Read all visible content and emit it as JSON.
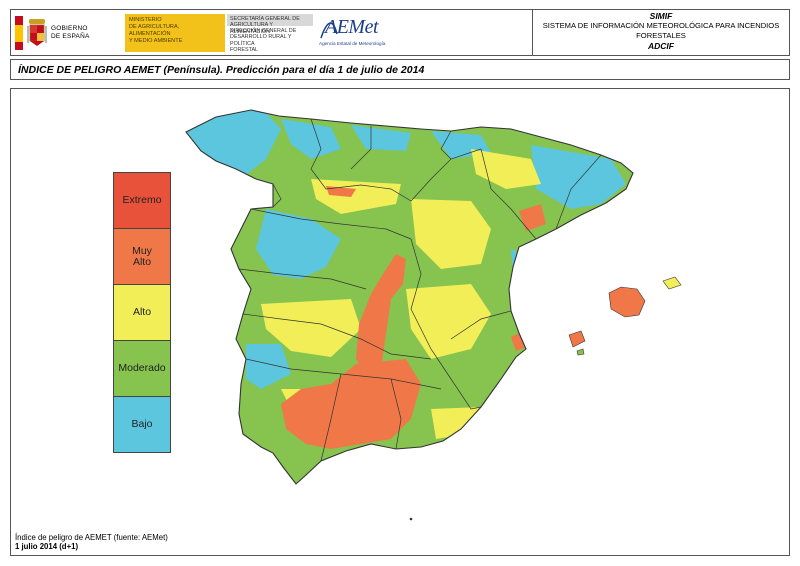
{
  "header": {
    "gov_name": "GOBIERNO\nDE ESPAÑA",
    "ministry": "MINISTERIO\nDE AGRICULTURA, ALIMENTACIÓN\nY MEDIO AMBIENTE",
    "secretaria": "SECRETARÍA GENERAL DE\nAGRICULTURA Y ALIMENTACIÓN",
    "direccion": "DIRECCIÓN GENERAL DE\nDESARROLLO RURAL Y POLÍTICA\nFORESTAL",
    "aemet_logo": "AEMet",
    "aemet_sub": "Agencia Estatal de Meteorología",
    "system_short": "SIMIF",
    "system_full": "SISTEMA DE INFORMACIÓN METEOROLÓGICA PARA INCENDIOS FORESTALES",
    "area": "ADCIF"
  },
  "title": "ÍNDICE DE PELIGRO AEMET (Península). Predicción para el día 1 de julio de 2014",
  "legend": [
    {
      "label": "Extremo",
      "color": "#e8523b"
    },
    {
      "label": "Muy\nAlto",
      "color": "#f07848"
    },
    {
      "label": "Alto",
      "color": "#f2ee58"
    },
    {
      "label": "Moderado",
      "color": "#86c34f"
    },
    {
      "label": "Bajo",
      "color": "#5cc6df"
    }
  ],
  "footnote": {
    "source": "Índice de peligro de AEMET (fuente: AEMet)",
    "date": "1 julio 2014 (d+1)"
  },
  "colors": {
    "sea": "#ffffff",
    "borders": "#333333",
    "flag_red": "#c60b1e",
    "flag_yellow": "#ffc400",
    "ministry_bg": "#f3c21a",
    "aemet_blue": "#1c3f8c"
  }
}
